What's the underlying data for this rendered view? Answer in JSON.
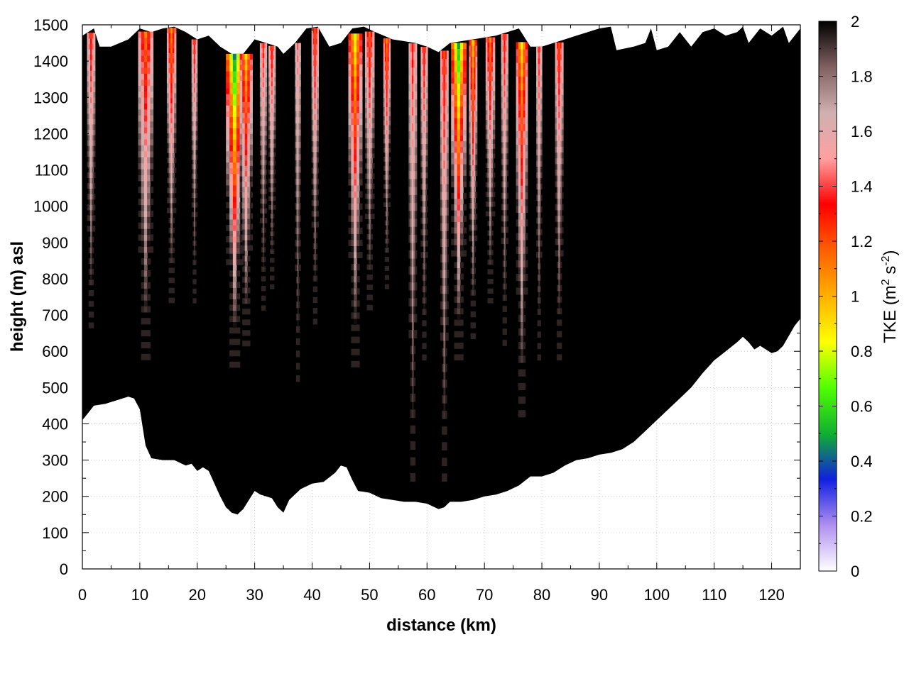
{
  "chart_data": {
    "type": "heatmap",
    "xlabel": "distance (km)",
    "ylabel": "height (m) asl",
    "xlim": [
      0,
      125
    ],
    "ylim": [
      0,
      1500
    ],
    "x_ticks": [
      "0",
      "10",
      "20",
      "30",
      "40",
      "50",
      "60",
      "70",
      "80",
      "90",
      "100",
      "110",
      "120"
    ],
    "y_ticks": [
      "0",
      "100",
      "200",
      "300",
      "400",
      "500",
      "600",
      "700",
      "800",
      "900",
      "1000",
      "1100",
      "1200",
      "1300",
      "1400",
      "1500"
    ],
    "grid": true,
    "colorbar": {
      "label_main": "TKE (m",
      "label_sup1": "2",
      "label_mid": " s",
      "label_sup2": "-2",
      "label_end": ")",
      "range": [
        0,
        2
      ],
      "ticks": [
        "0",
        "0.2",
        "0.4",
        "0.6",
        "0.8",
        "1",
        "1.2",
        "1.4",
        "1.6",
        "1.8",
        "2"
      ],
      "palette": [
        "#ffffff",
        "#b090f0",
        "#1020e0",
        "#10b030",
        "#50ff00",
        "#ffff00",
        "#ffb000",
        "#ff6000",
        "#ff0000",
        "#ffa0a0",
        "#d0b0b0",
        "#806060",
        "#000000"
      ]
    },
    "terrain_km_m": [
      [
        0,
        410
      ],
      [
        2,
        450
      ],
      [
        4,
        455
      ],
      [
        6,
        465
      ],
      [
        8,
        475
      ],
      [
        9,
        470
      ],
      [
        10,
        440
      ],
      [
        11,
        340
      ],
      [
        12,
        305
      ],
      [
        14,
        300
      ],
      [
        16,
        300
      ],
      [
        18,
        285
      ],
      [
        19,
        290
      ],
      [
        20,
        270
      ],
      [
        21,
        280
      ],
      [
        22,
        270
      ],
      [
        24,
        200
      ],
      [
        25,
        170
      ],
      [
        26,
        155
      ],
      [
        27,
        150
      ],
      [
        28,
        165
      ],
      [
        29,
        190
      ],
      [
        30,
        215
      ],
      [
        31,
        205
      ],
      [
        33,
        195
      ],
      [
        34,
        170
      ],
      [
        35,
        155
      ],
      [
        36,
        190
      ],
      [
        38,
        220
      ],
      [
        40,
        235
      ],
      [
        42,
        240
      ],
      [
        44,
        265
      ],
      [
        45,
        285
      ],
      [
        46,
        280
      ],
      [
        47,
        245
      ],
      [
        48,
        215
      ],
      [
        50,
        210
      ],
      [
        52,
        195
      ],
      [
        54,
        190
      ],
      [
        56,
        185
      ],
      [
        58,
        185
      ],
      [
        60,
        180
      ],
      [
        62,
        165
      ],
      [
        63,
        170
      ],
      [
        64,
        185
      ],
      [
        66,
        185
      ],
      [
        68,
        190
      ],
      [
        70,
        200
      ],
      [
        72,
        205
      ],
      [
        74,
        215
      ],
      [
        76,
        230
      ],
      [
        78,
        255
      ],
      [
        80,
        255
      ],
      [
        82,
        265
      ],
      [
        84,
        285
      ],
      [
        86,
        300
      ],
      [
        88,
        305
      ],
      [
        90,
        315
      ],
      [
        92,
        320
      ],
      [
        94,
        330
      ],
      [
        96,
        350
      ],
      [
        98,
        380
      ],
      [
        100,
        410
      ],
      [
        102,
        440
      ],
      [
        104,
        470
      ],
      [
        106,
        500
      ],
      [
        108,
        540
      ],
      [
        110,
        575
      ],
      [
        112,
        600
      ],
      [
        114,
        625
      ],
      [
        115,
        640
      ],
      [
        116,
        625
      ],
      [
        117,
        605
      ],
      [
        118,
        615
      ],
      [
        120,
        595
      ],
      [
        121,
        600
      ],
      [
        122,
        615
      ],
      [
        124,
        670
      ],
      [
        125,
        690
      ]
    ],
    "domain_top_km_m": [
      [
        0,
        1470
      ],
      [
        2,
        1490
      ],
      [
        3,
        1440
      ],
      [
        5,
        1440
      ],
      [
        8,
        1460
      ],
      [
        10,
        1490
      ],
      [
        12,
        1480
      ],
      [
        14,
        1490
      ],
      [
        16,
        1495
      ],
      [
        18,
        1480
      ],
      [
        20,
        1460
      ],
      [
        22,
        1470
      ],
      [
        24,
        1440
      ],
      [
        26,
        1420
      ],
      [
        28,
        1420
      ],
      [
        30,
        1460
      ],
      [
        32,
        1450
      ],
      [
        34,
        1440
      ],
      [
        35,
        1420
      ],
      [
        37,
        1450
      ],
      [
        39,
        1490
      ],
      [
        41,
        1495
      ],
      [
        43,
        1440
      ],
      [
        45,
        1450
      ],
      [
        47,
        1490
      ],
      [
        49,
        1495
      ],
      [
        51,
        1480
      ],
      [
        54,
        1460
      ],
      [
        56,
        1455
      ],
      [
        58,
        1450
      ],
      [
        60,
        1440
      ],
      [
        62,
        1425
      ],
      [
        64,
        1450
      ],
      [
        66,
        1455
      ],
      [
        68,
        1460
      ],
      [
        70,
        1465
      ],
      [
        72,
        1470
      ],
      [
        74,
        1480
      ],
      [
        76,
        1490
      ],
      [
        78,
        1440
      ],
      [
        80,
        1440
      ],
      [
        82,
        1450
      ],
      [
        84,
        1460
      ],
      [
        86,
        1470
      ],
      [
        88,
        1480
      ],
      [
        90,
        1490
      ],
      [
        92,
        1495
      ],
      [
        93,
        1430
      ],
      [
        96,
        1440
      ],
      [
        98,
        1450
      ],
      [
        99,
        1490
      ],
      [
        100,
        1430
      ],
      [
        102,
        1440
      ],
      [
        104,
        1480
      ],
      [
        106,
        1440
      ],
      [
        108,
        1480
      ],
      [
        110,
        1490
      ],
      [
        112,
        1470
      ],
      [
        114,
        1480
      ],
      [
        115,
        1495
      ],
      [
        116,
        1450
      ],
      [
        118,
        1490
      ],
      [
        120,
        1470
      ],
      [
        122,
        1495
      ],
      [
        123,
        1450
      ],
      [
        125,
        1490
      ]
    ],
    "plumes": [
      {
        "x": 1.5,
        "w": 1.4,
        "bottom": 650,
        "peak": 1.3
      },
      {
        "x": 11,
        "w": 2.6,
        "bottom": 560,
        "peak": 1.15
      },
      {
        "x": 15.5,
        "w": 1.6,
        "bottom": 720,
        "peak": 1.1
      },
      {
        "x": 19.5,
        "w": 1.0,
        "bottom": 720,
        "peak": 1.3
      },
      {
        "x": 26.5,
        "w": 3.0,
        "bottom": 540,
        "peak": 0.5
      },
      {
        "x": 28.5,
        "w": 2.2,
        "bottom": 600,
        "peak": 0.95
      },
      {
        "x": 31.5,
        "w": 1.2,
        "bottom": 700,
        "peak": 1.35
      },
      {
        "x": 33,
        "w": 1.2,
        "bottom": 760,
        "peak": 1.3
      },
      {
        "x": 37.5,
        "w": 1.0,
        "bottom": 500,
        "peak": 1.45
      },
      {
        "x": 40.5,
        "w": 1.2,
        "bottom": 660,
        "peak": 1.2
      },
      {
        "x": 47.5,
        "w": 2.4,
        "bottom": 540,
        "peak": 0.85
      },
      {
        "x": 50,
        "w": 1.6,
        "bottom": 700,
        "peak": 1.2
      },
      {
        "x": 53,
        "w": 1.2,
        "bottom": 760,
        "peak": 1.1
      },
      {
        "x": 57.5,
        "w": 1.4,
        "bottom": 220,
        "peak": 1.35
      },
      {
        "x": 59.5,
        "w": 1.2,
        "bottom": 560,
        "peak": 1.3
      },
      {
        "x": 63,
        "w": 1.4,
        "bottom": 220,
        "peak": 1.25
      },
      {
        "x": 65.5,
        "w": 2.6,
        "bottom": 560,
        "peak": 0.55
      },
      {
        "x": 68,
        "w": 1.4,
        "bottom": 620,
        "peak": 0.95
      },
      {
        "x": 71,
        "w": 1.6,
        "bottom": 720,
        "peak": 1.1
      },
      {
        "x": 73.5,
        "w": 1.2,
        "bottom": 600,
        "peak": 1.3
      },
      {
        "x": 76.5,
        "w": 2.0,
        "bottom": 400,
        "peak": 0.9
      },
      {
        "x": 79.5,
        "w": 1.0,
        "bottom": 560,
        "peak": 1.35
      },
      {
        "x": 83,
        "w": 1.4,
        "bottom": 560,
        "peak": 1.25
      }
    ]
  }
}
